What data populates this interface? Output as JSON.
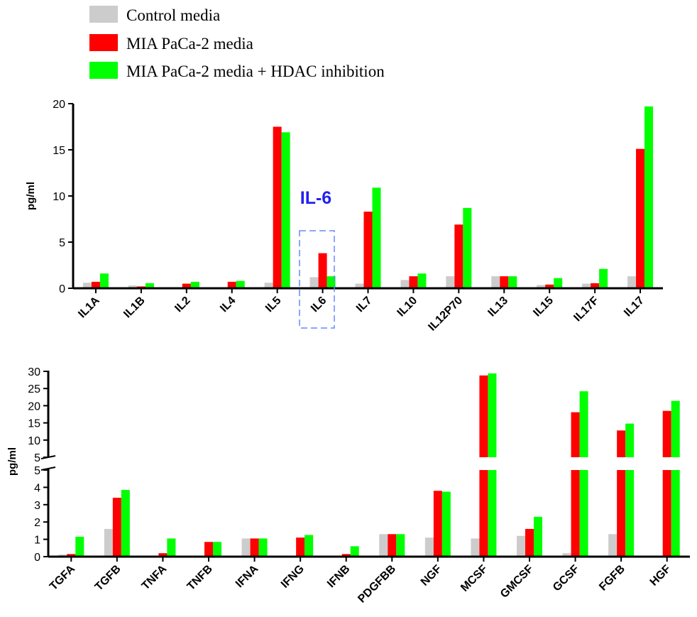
{
  "legend": [
    {
      "label": "Control media",
      "color": "#cccccc"
    },
    {
      "label": "MIA PaCa-2 media",
      "color": "#ff0000"
    },
    {
      "label": "MIA PaCa-2 media + HDAC inhibition",
      "color": "#00ff00"
    }
  ],
  "chart_data": [
    {
      "type": "bar",
      "ylabel": "pg/ml",
      "ylim": [
        0,
        20
      ],
      "yticks": [
        "0",
        "5",
        "10",
        "15",
        "20"
      ],
      "categories": [
        "IL1A",
        "IL1B",
        "IL2",
        "IL4",
        "IL5",
        "IL6",
        "IL7",
        "IL10",
        "IL12P70",
        "IL13",
        "IL15",
        "IL17F",
        "IL17"
      ],
      "series": [
        {
          "name": "Control media",
          "values": [
            0.6,
            0.3,
            0.0,
            0.0,
            0.6,
            1.2,
            0.5,
            0.9,
            1.3,
            1.3,
            0.35,
            0.5,
            1.3
          ]
        },
        {
          "name": "MIA PaCa-2 media",
          "values": [
            0.7,
            0.2,
            0.5,
            0.7,
            17.5,
            3.8,
            8.3,
            1.3,
            6.9,
            1.3,
            0.4,
            0.55,
            15.1
          ]
        },
        {
          "name": "MIA PaCa-2 media + HDAC inhibition",
          "values": [
            1.6,
            0.55,
            0.7,
            0.8,
            16.9,
            1.3,
            10.9,
            1.6,
            8.7,
            1.3,
            1.1,
            2.1,
            19.7
          ]
        }
      ],
      "annotation": {
        "text": "IL-6",
        "category": "IL6",
        "style": "dashed blue box"
      }
    },
    {
      "type": "bar",
      "ylabel": "pg/ml",
      "axis_break": true,
      "ylim_lower": [
        0,
        5
      ],
      "ylim_upper": [
        5,
        30
      ],
      "yticks_lower": [
        "0",
        "1",
        "2",
        "3",
        "4",
        "5"
      ],
      "yticks_upper": [
        "5",
        "10",
        "15",
        "20",
        "25",
        "30"
      ],
      "categories": [
        "TGFA",
        "TGFB",
        "TNFA",
        "TNFB",
        "IFNA",
        "IFNG",
        "IFNB",
        "PDGFBB",
        "NGF",
        "MCSF",
        "GMCSF",
        "GCSF",
        "FGFB",
        "HGF"
      ],
      "series": [
        {
          "name": "Control media",
          "values": [
            0.12,
            1.6,
            0.03,
            0.0,
            1.05,
            0.03,
            0.0,
            1.3,
            1.1,
            1.05,
            1.2,
            0.2,
            1.3,
            0.0
          ]
        },
        {
          "name": "MIA PaCa-2 media",
          "values": [
            0.15,
            3.4,
            0.2,
            0.85,
            1.05,
            1.1,
            0.15,
            1.3,
            3.8,
            28.8,
            1.6,
            18.1,
            12.8,
            18.5
          ]
        },
        {
          "name": "MIA PaCa-2 media + HDAC inhibition",
          "values": [
            1.15,
            3.85,
            1.05,
            0.85,
            1.05,
            1.25,
            0.6,
            1.3,
            3.75,
            29.4,
            2.3,
            24.2,
            14.8,
            21.4
          ]
        }
      ]
    }
  ]
}
